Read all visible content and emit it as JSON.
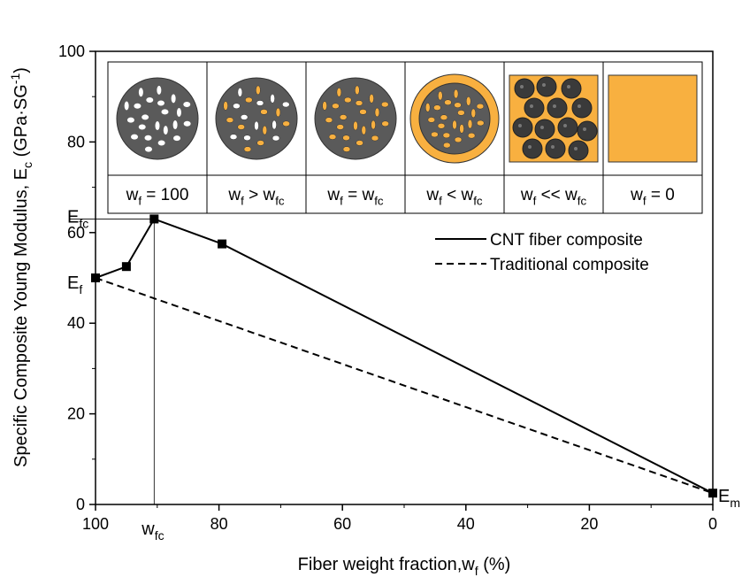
{
  "chart_data": {
    "type": "line",
    "x_label": [
      "Fiber weight fraction,w",
      "f",
      " (%)"
    ],
    "y_label": {
      "text": "Specific Composite Young Modulus, E",
      "sub": "c",
      "unit": " (GPa·SG",
      "sup": "-1",
      "close": ")"
    },
    "xlim": [
      100,
      0
    ],
    "ylim": [
      0,
      100
    ],
    "xticks": [
      100,
      80,
      60,
      40,
      20,
      0
    ],
    "yticks": [
      0,
      20,
      40,
      60,
      80,
      100
    ],
    "series": [
      {
        "name": "CNT fiber composite",
        "color": "#000000",
        "dash": false,
        "markers": true,
        "x": [
          100,
          95,
          90.5,
          79.5,
          0
        ],
        "values": [
          50,
          52.5,
          63,
          57.5,
          2.5
        ]
      },
      {
        "name": "Traditional composite",
        "color": "#000000",
        "dash": true,
        "markers": false,
        "x": [
          100,
          0
        ],
        "values": [
          50,
          2.5
        ]
      }
    ],
    "annotations": [
      {
        "parts": [
          "E",
          "f"
        ],
        "x": 100,
        "y": 50
      },
      {
        "parts": [
          "E",
          "fc"
        ],
        "x": 100,
        "y": 63
      },
      {
        "parts": [
          "E",
          "m"
        ],
        "x": 0,
        "y": 2.5
      },
      {
        "parts": [
          "w",
          "fc"
        ],
        "x": 90.5,
        "y": 0
      }
    ],
    "inset_labels": [
      [
        "w",
        "f",
        " = 100"
      ],
      [
        "w",
        "f",
        " > w",
        "fc"
      ],
      [
        "w",
        "f",
        " = w",
        "fc"
      ],
      [
        "w",
        "f",
        " < w",
        "fc"
      ],
      [
        "w",
        "f",
        " << w",
        "fc"
      ],
      [
        "w",
        "f",
        " = 0"
      ]
    ],
    "legend": "upper right"
  }
}
